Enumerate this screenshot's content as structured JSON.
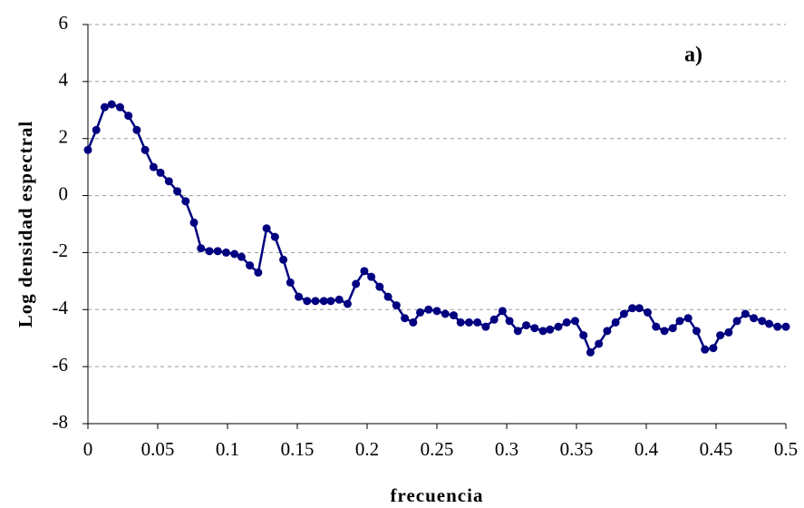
{
  "chart_data": {
    "type": "line",
    "xlabel": "frecuencia",
    "ylabel": "Log densidad espectral",
    "annotation": "a)",
    "color": "#000080",
    "grid": true,
    "xlim": [
      0,
      0.5
    ],
    "xticks": [
      0,
      0.05,
      0.1,
      0.15,
      0.2,
      0.25,
      0.3,
      0.35,
      0.4,
      0.45,
      0.5
    ],
    "ylim": [
      -8,
      6
    ],
    "yticks": [
      -8,
      -6,
      -4,
      -2,
      0,
      2,
      4,
      6
    ],
    "x": [
      0,
      0.006,
      0.012,
      0.017,
      0.023,
      0.029,
      0.035,
      0.041,
      0.047,
      0.052,
      0.058,
      0.064,
      0.07,
      0.076,
      0.081,
      0.087,
      0.093,
      0.099,
      0.105,
      0.11,
      0.116,
      0.122,
      0.128,
      0.134,
      0.14,
      0.145,
      0.151,
      0.157,
      0.163,
      0.169,
      0.174,
      0.18,
      0.186,
      0.192,
      0.198,
      0.203,
      0.209,
      0.215,
      0.221,
      0.227,
      0.233,
      0.238,
      0.244,
      0.25,
      0.256,
      0.262,
      0.267,
      0.273,
      0.279,
      0.285,
      0.291,
      0.297,
      0.302,
      0.308,
      0.314,
      0.32,
      0.326,
      0.331,
      0.337,
      0.343,
      0.349,
      0.355,
      0.36,
      0.366,
      0.372,
      0.378,
      0.384,
      0.39,
      0.395,
      0.401,
      0.407,
      0.413,
      0.419,
      0.424,
      0.43,
      0.436,
      0.442,
      0.448,
      0.453,
      0.459,
      0.465,
      0.471,
      0.477,
      0.483,
      0.488,
      0.494,
      0.5
    ],
    "values": [
      1.6,
      2.3,
      3.1,
      3.2,
      3.1,
      2.8,
      2.3,
      1.6,
      1.0,
      0.8,
      0.5,
      0.15,
      -0.2,
      -0.95,
      -1.85,
      -1.95,
      -1.95,
      -2.0,
      -2.05,
      -2.15,
      -2.45,
      -2.7,
      -1.15,
      -1.45,
      -2.25,
      -3.05,
      -3.55,
      -3.7,
      -3.7,
      -3.7,
      -3.7,
      -3.65,
      -3.8,
      -3.1,
      -2.65,
      -2.85,
      -3.2,
      -3.55,
      -3.85,
      -4.3,
      -4.45,
      -4.1,
      -4.0,
      -4.05,
      -4.15,
      -4.2,
      -4.45,
      -4.45,
      -4.45,
      -4.6,
      -4.35,
      -4.05,
      -4.4,
      -4.75,
      -4.55,
      -4.65,
      -4.75,
      -4.7,
      -4.6,
      -4.45,
      -4.4,
      -4.9,
      -5.5,
      -5.2,
      -4.75,
      -4.45,
      -4.15,
      -3.95,
      -3.95,
      -4.1,
      -4.6,
      -4.75,
      -4.65,
      -4.4,
      -4.3,
      -4.75,
      -5.4,
      -5.35,
      -4.9,
      -4.8,
      -4.4,
      -4.15,
      -4.3,
      -4.4,
      -4.5,
      -4.6,
      -4.6
    ]
  }
}
